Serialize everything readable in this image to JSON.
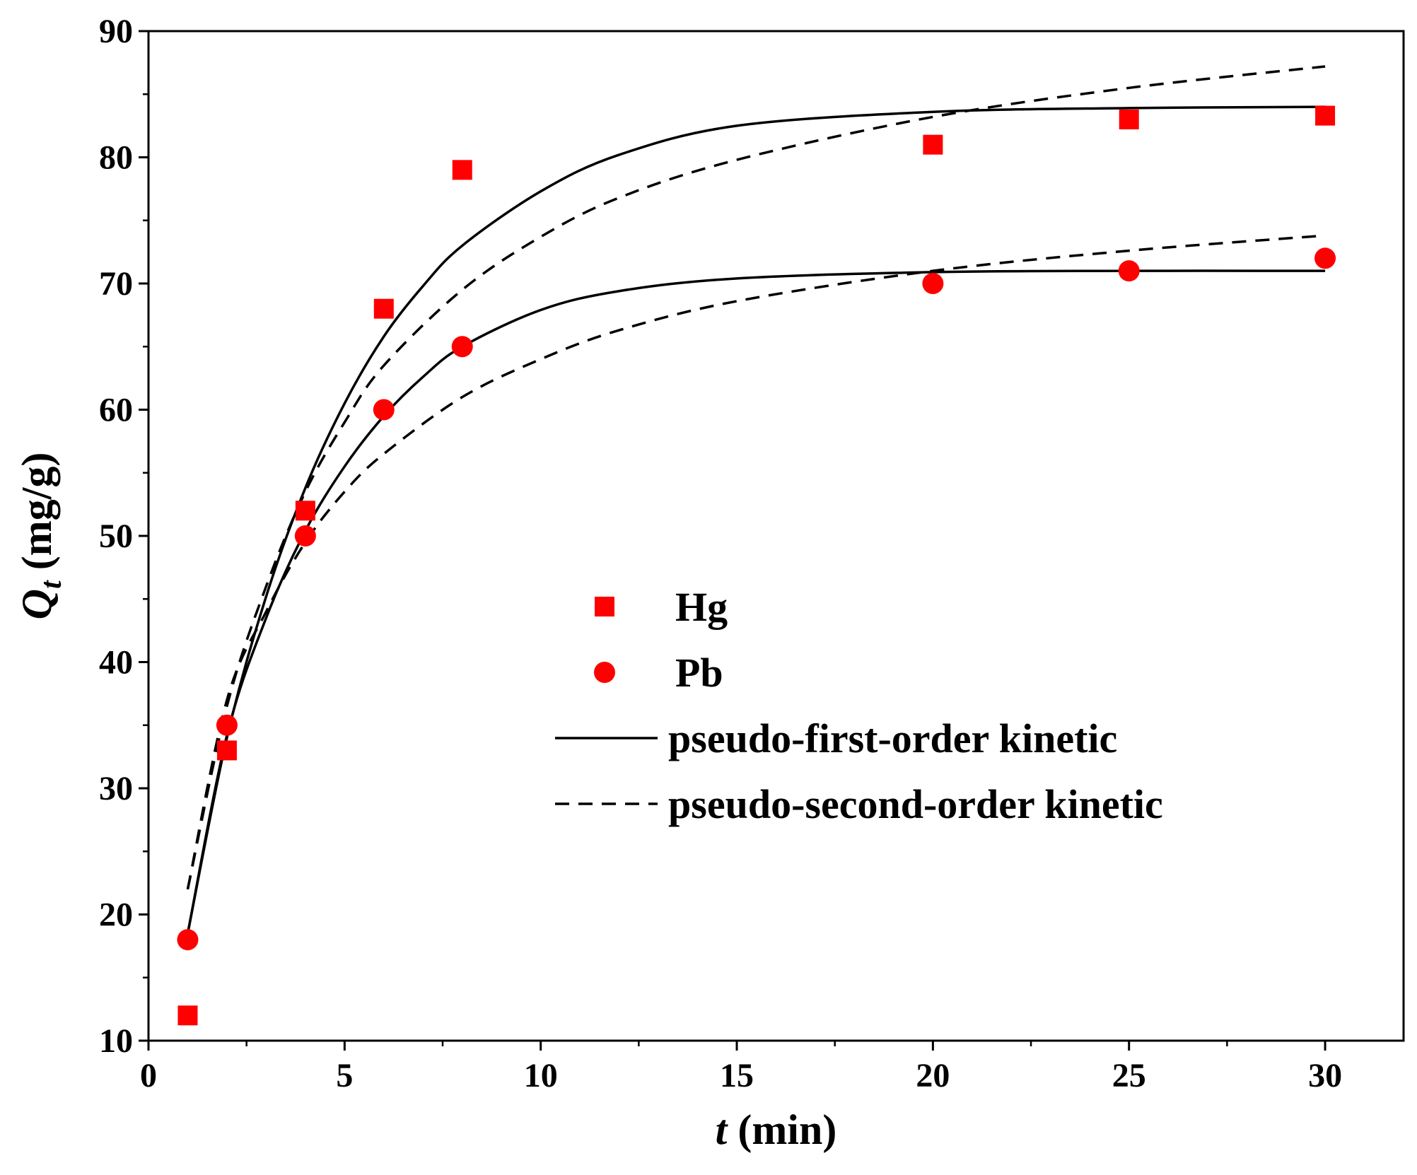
{
  "chart_data": {
    "type": "scatter",
    "title": "",
    "xlabel": {
      "var": "t",
      "unit": " (min)"
    },
    "ylabel": {
      "var": "Q",
      "sub": "t",
      "unit": " (mg/g)"
    },
    "xlim": [
      0,
      32
    ],
    "ylim": [
      10,
      90
    ],
    "xticks": [
      0,
      5,
      10,
      15,
      20,
      25,
      30
    ],
    "yticks": [
      10,
      20,
      30,
      40,
      50,
      60,
      70,
      80,
      90
    ],
    "grid": false,
    "legend_position": "center-right",
    "point_color": "#ff0000",
    "line_color": "#000000",
    "series": [
      {
        "name": "Hg",
        "kind": "points",
        "marker": "square",
        "x": [
          1,
          2,
          4,
          6,
          8,
          20,
          25,
          30
        ],
        "y": [
          12,
          33,
          52,
          68,
          79,
          81,
          83,
          83.3
        ]
      },
      {
        "name": "Pb",
        "kind": "points",
        "marker": "circle",
        "x": [
          1,
          2,
          4,
          6,
          8,
          20,
          25,
          30
        ],
        "y": [
          18,
          35,
          50,
          60,
          65,
          70,
          71,
          72
        ]
      }
    ],
    "fits": [
      {
        "name": "pseudo-first-order kinetic",
        "style": "solid",
        "curves": [
          {
            "x": [
              1,
              2,
              3,
              4,
              5,
              6,
              7,
              8,
              10,
              12,
              15,
              20,
              25,
              30
            ],
            "y": [
              18.5,
              34,
              45.2,
              53.8,
              60.5,
              65.8,
              69.8,
              73,
              77.3,
              80.2,
              82.5,
              83.6,
              83.9,
              84
            ]
          },
          {
            "x": [
              1,
              2,
              3,
              4,
              5,
              6,
              7,
              8,
              10,
              12,
              15,
              20,
              25,
              30
            ],
            "y": [
              18.5,
              34.2,
              43.5,
              50.4,
              55.5,
              59.5,
              62.6,
              65,
              67.9,
              69.4,
              70.4,
              70.9,
              71,
              71
            ]
          }
        ]
      },
      {
        "name": "pseudo-second-order kinetic",
        "style": "dashed",
        "curves": [
          {
            "x": [
              1,
              2,
              3,
              4,
              5,
              6,
              8,
              10,
              12,
              15,
              20,
              25,
              30
            ],
            "y": [
              22,
              36.5,
              46,
              53.5,
              59,
              63.5,
              69.5,
              73.7,
              76.8,
              79.8,
              83.2,
              85.5,
              87.2
            ]
          },
          {
            "x": [
              1,
              2,
              3,
              4,
              5,
              6,
              8,
              10,
              12,
              15,
              20,
              25,
              30
            ],
            "y": [
              22,
              37,
              44,
              49.5,
              53.5,
              56.5,
              61,
              64,
              66.3,
              68.6,
              71,
              72.6,
              73.8
            ]
          }
        ]
      }
    ]
  }
}
